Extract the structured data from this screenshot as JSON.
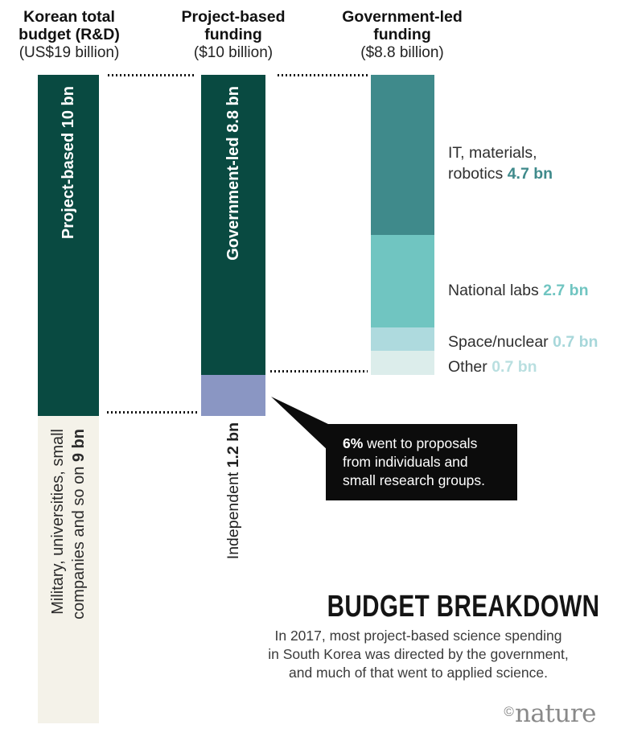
{
  "chart_data": {
    "type": "bar",
    "variant": "stacked-flow-breakdown",
    "title": "BUDGET BREAKDOWN",
    "subtitle": "In 2017, most project-based science spending in South Korea was directed by the government, and much of that went to applied science.",
    "unit": "US$ billion",
    "bars": [
      {
        "name": "Korean total budget (R&D)",
        "total_label": "(US$19 billion)",
        "total": 19,
        "segments": [
          {
            "name": "Project-based",
            "value": 10,
            "display": "Project-based 10 bn",
            "color": "#094a41"
          },
          {
            "name": "Military, universities, small companies and so on",
            "value": 9,
            "display": "Military, universities, small companies and so on 9 bn",
            "color": "#f4f2e9"
          }
        ]
      },
      {
        "name": "Project-based funding",
        "total_label": "($10 billion)",
        "total": 10,
        "segments": [
          {
            "name": "Government-led",
            "value": 8.8,
            "display": "Government-led 8.8 bn",
            "color": "#094a41"
          },
          {
            "name": "Independent",
            "value": 1.2,
            "display": "Independent 1.2 bn",
            "color": "#8a96c3"
          }
        ]
      },
      {
        "name": "Government-led funding",
        "total_label": "($8.8 billion)",
        "total": 8.8,
        "segments": [
          {
            "name": "IT, materials, robotics",
            "value": 4.7,
            "display": "IT, materials, robotics 4.7 bn",
            "color": "#3f8a8b"
          },
          {
            "name": "National labs",
            "value": 2.7,
            "display": "National labs 2.7 bn",
            "color": "#70c5c1"
          },
          {
            "name": "Space/nuclear",
            "value": 0.7,
            "display": "Space/nuclear 0.7 bn",
            "color": "#aedade"
          },
          {
            "name": "Other",
            "value": 0.7,
            "display": "Other 0.7 bn",
            "color": "#dcedeb"
          }
        ]
      }
    ],
    "annotation": "6% went to proposals from individuals and small research groups.",
    "legend_position": "right-of-third-bar",
    "grid": false,
    "source": "nature"
  },
  "headers": [
    {
      "title": "Korean total\nbudget (R&D)",
      "subtitle": "(US$19 billion)"
    },
    {
      "title": "Project-based\nfunding",
      "subtitle": "($10 billion)"
    },
    {
      "title": "Government-led\nfunding",
      "subtitle": "($8.8 billion)"
    }
  ],
  "bar_labels": {
    "col1_dark": "Project-based 10 bn",
    "col1_light_line1": "Military, universities, small",
    "col1_light_line2_text": "companies and so on ",
    "col1_light_line2_value": "9 bn",
    "col2_dark": "Government-led 8.8 bn",
    "col2_below_text": "Independent ",
    "col2_below_value": "1.2 bn"
  },
  "right_labels": [
    {
      "text": "IT, materials,\nrobotics ",
      "value": "4.7 bn",
      "color": "#3f8a8b"
    },
    {
      "text": "National labs ",
      "value": "2.7 bn",
      "color": "#70c5c1"
    },
    {
      "text": "Space/nuclear ",
      "value": "0.7 bn",
      "color": "#a7d7da"
    },
    {
      "text": "Other ",
      "value": "0.7 bn",
      "color": "#b9dfe0"
    }
  ],
  "callout": {
    "lead": "6%",
    "rest": " went to proposals\nfrom individuals and\nsmall research groups."
  },
  "footer": {
    "title": "BUDGET BREAKDOWN",
    "description": "In 2017, most project-based science spending\nin South Korea was directed by the government,\nand much of that went to applied science.",
    "credit_symbol": "©",
    "credit_name": "nature"
  },
  "colors": {
    "dark_teal": "#094a41",
    "medium_teal": "#3f8a8b",
    "light_teal": "#70c5c1",
    "pale_teal": "#aedade",
    "palest_teal": "#dcedeb",
    "independent_purple": "#8a96c3",
    "budget_cream": "#f4f2e9",
    "callout_black": "#0c0c0c",
    "text_dark": "#222222",
    "nature_gray": "#898989"
  }
}
